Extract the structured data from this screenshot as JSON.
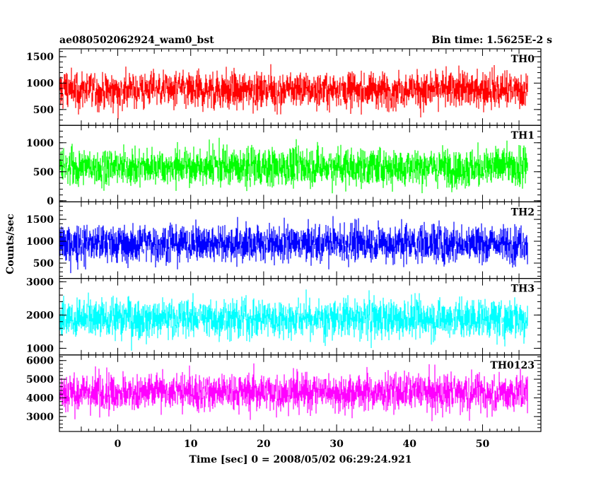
{
  "chart_data": {
    "type": "line",
    "title": "ae080502062924_wam0_bst",
    "subtitle": "Bin time: 1.5625E-2 s",
    "xlabel": "Time [sec] 0 = 2008/05/02 06:29:24.921",
    "ylabel": "Counts/sec",
    "xlim": [
      -8,
      58
    ],
    "data_xrange": [
      -7.9,
      56.2
    ],
    "x_ticks": [
      0,
      10,
      20,
      30,
      40,
      50
    ],
    "panels": [
      {
        "name": "TH0",
        "color": "#ff0000",
        "ylim": [
          200,
          1650
        ],
        "y_ticks": [
          500,
          1000,
          1500
        ],
        "mean": 870,
        "min_env": 300,
        "max_env": 1650
      },
      {
        "name": "TH1",
        "color": "#00ff00",
        "ylim": [
          -20,
          1300
        ],
        "y_ticks": [
          0,
          500,
          1000
        ],
        "mean": 580,
        "min_env": 20,
        "max_env": 1300
      },
      {
        "name": "TH2",
        "color": "#0000ff",
        "ylim": [
          150,
          1900
        ],
        "y_ticks": [
          500,
          1000,
          1500
        ],
        "mean": 950,
        "min_env": 200,
        "max_env": 1900
      },
      {
        "name": "TH3",
        "color": "#00ffff",
        "ylim": [
          800,
          3100
        ],
        "y_ticks": [
          1000,
          2000,
          3000
        ],
        "mean": 1900,
        "min_env": 850,
        "max_env": 3100
      },
      {
        "name": "TH0123",
        "color": "#ff00ff",
        "ylim": [
          2200,
          6300
        ],
        "y_ticks": [
          3000,
          4000,
          5000,
          6000
        ],
        "mean": 4300,
        "min_env": 2300,
        "max_env": 6200
      }
    ]
  }
}
